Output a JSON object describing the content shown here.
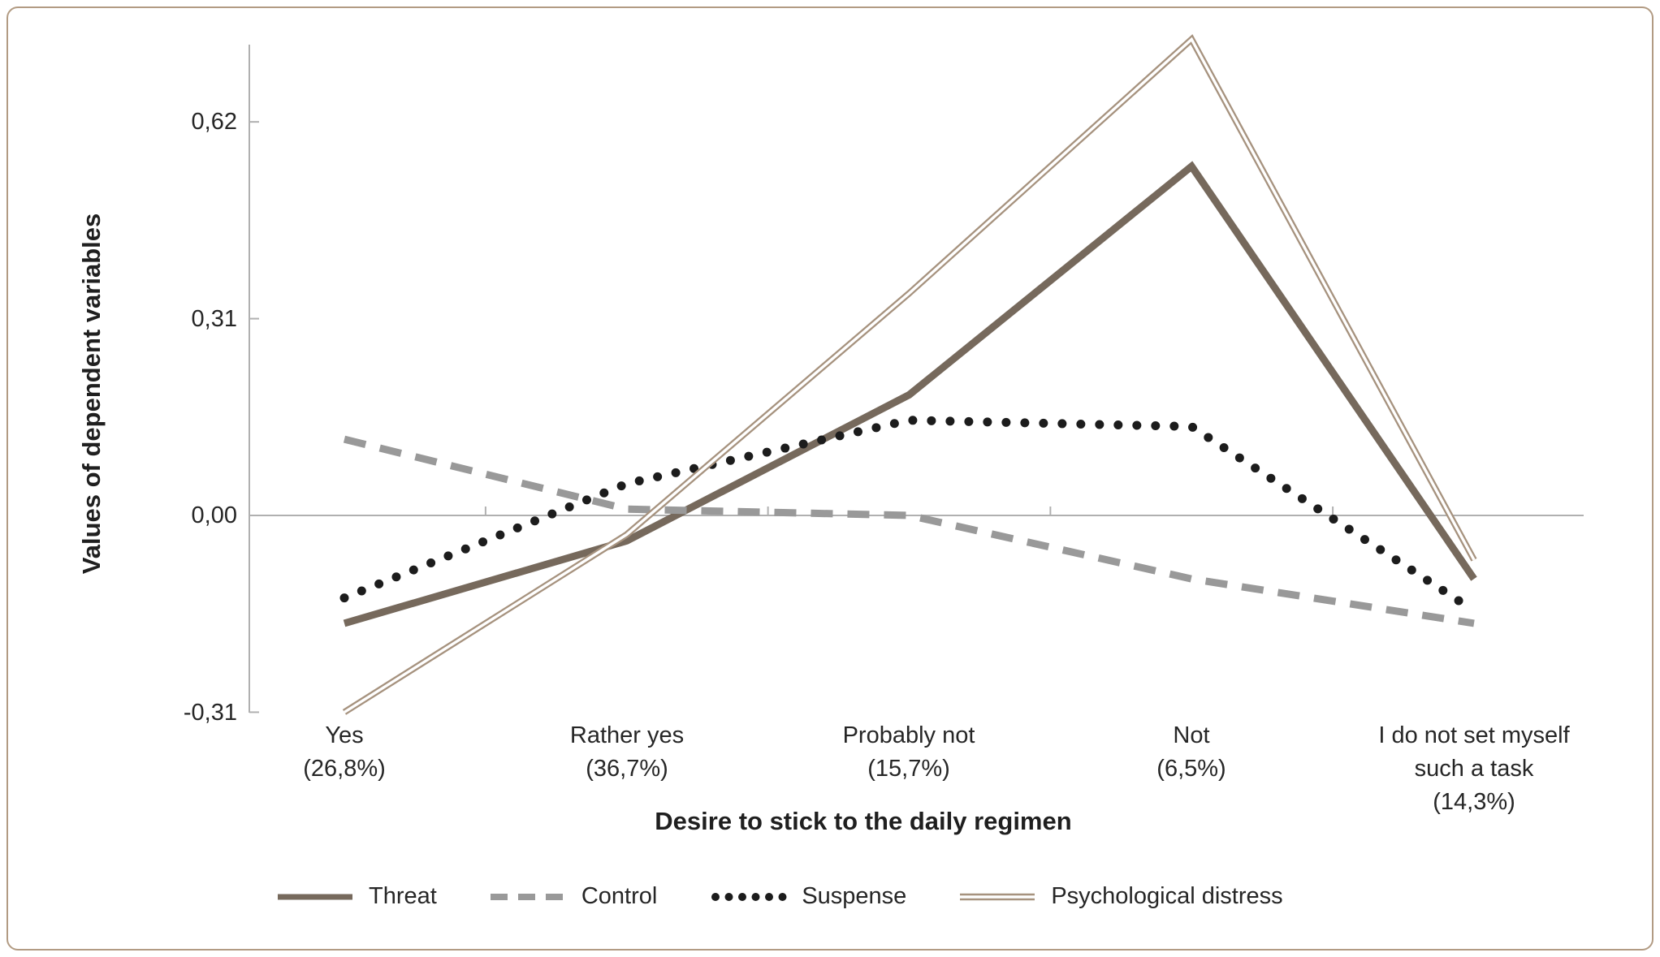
{
  "figure": {
    "border_color": "#b29b83",
    "background": "#ffffff",
    "axis_color": "#b0b0b0",
    "text_color": "#262626"
  },
  "chart_data": {
    "type": "line",
    "title": "",
    "xlabel": "Desire to stick to the daily regimen",
    "ylabel": "Values of dependent variables",
    "categories": [
      "Yes (26,8%)",
      "Rather yes (36,7%)",
      "Probably not (15,7%)",
      "Not (6,5%)",
      "I do not set myself such a task (14,3%)"
    ],
    "x_tick_labels": [
      {
        "lines": [
          "Yes",
          "(26,8%)"
        ]
      },
      {
        "lines": [
          "Rather yes",
          "(36,7%)"
        ]
      },
      {
        "lines": [
          "Probably not",
          "(15,7%)"
        ]
      },
      {
        "lines": [
          "Not",
          "(6,5%)"
        ]
      },
      {
        "lines": [
          "I do not set myself",
          "such a task",
          "(14,3%)"
        ]
      }
    ],
    "y_ticks": [
      {
        "label": "0,62",
        "value": 0.62
      },
      {
        "label": "0,31",
        "value": 0.31
      },
      {
        "label": "0,00",
        "value": 0.0
      },
      {
        "label": "-0,31",
        "value": -0.31
      }
    ],
    "ylim": [
      -0.36,
      0.78
    ],
    "grid": false,
    "legend_position": "bottom",
    "decimal_separator": ",",
    "series": [
      {
        "name": "Threat",
        "style": "solid",
        "color": "#76695C",
        "values": [
          -0.17,
          -0.04,
          0.19,
          0.55,
          -0.1
        ]
      },
      {
        "name": "Control",
        "style": "dashed",
        "color": "#999999",
        "values": [
          0.12,
          0.01,
          0.0,
          -0.1,
          -0.17
        ]
      },
      {
        "name": "Suspense",
        "style": "dotted",
        "color": "#1C1C1C",
        "values": [
          -0.13,
          0.05,
          0.15,
          0.14,
          -0.15
        ]
      },
      {
        "name": "Psychological distress",
        "style": "double",
        "color": "#A6927E",
        "values": [
          -0.31,
          -0.03,
          0.35,
          0.75,
          -0.07
        ]
      }
    ]
  }
}
